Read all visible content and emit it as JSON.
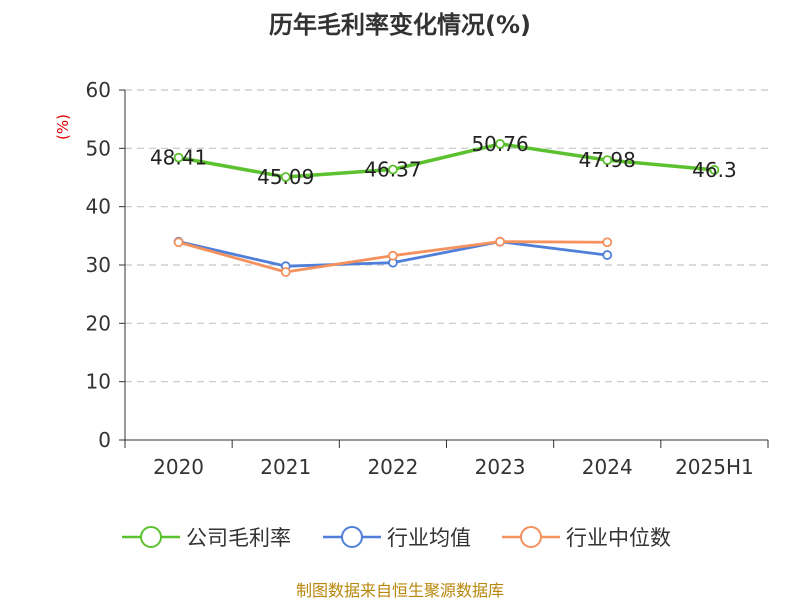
{
  "chart_data": {
    "type": "line",
    "title": "历年毛利率变化情况(%)",
    "ylabel": "(%)",
    "xlabel": "",
    "categories": [
      "2020",
      "2021",
      "2022",
      "2023",
      "2024",
      "2025H1"
    ],
    "ylim": [
      0,
      60
    ],
    "yticks": [
      0,
      10,
      20,
      30,
      40,
      50,
      60
    ],
    "grid": true,
    "legend_position": "bottom",
    "series": [
      {
        "name": "公司毛利率",
        "color": "#5cc12e",
        "values": [
          48.41,
          45.09,
          46.37,
          50.76,
          47.98,
          46.3
        ],
        "labels": [
          "48.41",
          "45.09",
          "46.37",
          "50.76",
          "47.98",
          "46.3"
        ]
      },
      {
        "name": "行业均值",
        "color": "#4f7fd8",
        "values": [
          34.0,
          29.8,
          30.4,
          34.0,
          31.7,
          null
        ]
      },
      {
        "name": "行业中位数",
        "color": "#f5915c",
        "values": [
          33.9,
          28.8,
          31.6,
          34.0,
          33.9,
          null
        ]
      }
    ]
  },
  "source": "制图数据来自恒生聚源数据库"
}
